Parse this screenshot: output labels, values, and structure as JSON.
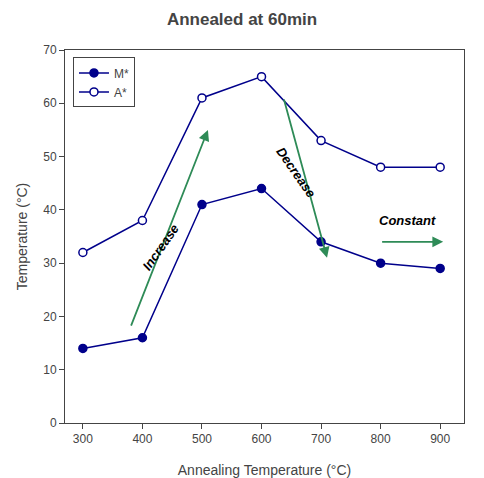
{
  "chart_data": {
    "type": "line",
    "title": "Annealed at 60min",
    "xlabel": "Annealing Temperature (°C)",
    "ylabel": "Temperature (°C)",
    "x": [
      300,
      400,
      500,
      600,
      700,
      800,
      900
    ],
    "series": [
      {
        "name": "M*",
        "color": "#00008B",
        "marker": "circle",
        "values": [
          14,
          16,
          41,
          44,
          34,
          30,
          29
        ]
      },
      {
        "name": "A*",
        "color": "#00008B",
        "marker": "circle-open",
        "values": [
          32,
          38,
          61,
          65,
          53,
          48,
          48
        ]
      }
    ],
    "xlim": [
      270,
      940
    ],
    "ylim": [
      0,
      70
    ],
    "xticks": [
      300,
      400,
      500,
      600,
      700,
      800,
      900
    ],
    "yticks": [
      0,
      10,
      20,
      30,
      40,
      50,
      60,
      70
    ],
    "grid": false,
    "legend": "upper left",
    "annotations": [
      {
        "text": "Increase",
        "x": 430,
        "y": 33,
        "color": "#2E8B57",
        "arrow": [
          [
            380,
            18
          ],
          [
            510,
            55
          ]
        ]
      },
      {
        "text": "Decrease",
        "x": 658,
        "y": 47,
        "color": "#2E8B57",
        "arrow": [
          [
            637,
            61
          ],
          [
            710,
            31
          ]
        ]
      },
      {
        "text": "Constant",
        "x": 845,
        "y": 38,
        "color": "#2E8B57",
        "arrow": [
          [
            800,
            34
          ],
          [
            905,
            34
          ]
        ]
      }
    ]
  }
}
